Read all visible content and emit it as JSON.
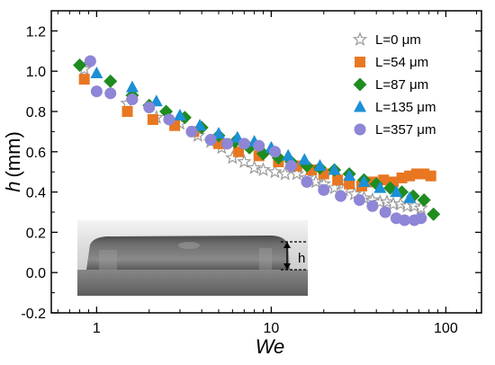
{
  "chart_data": {
    "type": "scatter",
    "title": "",
    "xlabel": "We",
    "ylabel_symbol": "h",
    "ylabel_unit": "(mm)",
    "x_scale": "log",
    "xlim": [
      0.55,
      160
    ],
    "ylim": [
      -0.2,
      1.3
    ],
    "x_ticks": [
      1,
      10,
      100
    ],
    "x_tick_labels": [
      "1",
      "10",
      "100"
    ],
    "y_ticks": [
      -0.2,
      0.0,
      0.2,
      0.4,
      0.6,
      0.8,
      1.0,
      1.2
    ],
    "y_tick_labels": [
      "-0.2",
      "0.0",
      "0.2",
      "0.4",
      "0.6",
      "0.8",
      "1.0",
      "1.2"
    ],
    "grid": false,
    "legend_position": "top-right",
    "inset": {
      "label": "h"
    },
    "series": [
      {
        "name": "L=0 μm",
        "marker": "star-open",
        "color": "#9a9a9a",
        "points": [
          [
            0.85,
            1.01
          ],
          [
            1.5,
            0.84
          ],
          [
            2.2,
            0.77
          ],
          [
            3.0,
            0.74
          ],
          [
            3.8,
            0.68
          ],
          [
            4.5,
            0.65
          ],
          [
            5.2,
            0.62
          ],
          [
            6.0,
            0.57
          ],
          [
            7.0,
            0.55
          ],
          [
            8.0,
            0.52
          ],
          [
            9.0,
            0.51
          ],
          [
            10.5,
            0.5
          ],
          [
            12.0,
            0.49
          ],
          [
            14.0,
            0.49
          ],
          [
            16.0,
            0.47
          ],
          [
            18.0,
            0.45
          ],
          [
            20.0,
            0.44
          ],
          [
            23.0,
            0.42
          ],
          [
            26.0,
            0.41
          ],
          [
            30.0,
            0.39
          ],
          [
            34.0,
            0.37
          ],
          [
            38.0,
            0.36
          ],
          [
            42.0,
            0.35
          ],
          [
            46.0,
            0.35
          ],
          [
            50.0,
            0.34
          ],
          [
            55.0,
            0.34
          ],
          [
            60.0,
            0.33
          ],
          [
            66.0,
            0.33
          ],
          [
            72.0,
            0.32
          ]
        ]
      },
      {
        "name": "L=54 μm",
        "marker": "square",
        "color": "#e87722",
        "points": [
          [
            0.85,
            0.96
          ],
          [
            1.5,
            0.8
          ],
          [
            2.1,
            0.76
          ],
          [
            2.8,
            0.73
          ],
          [
            3.6,
            0.7
          ],
          [
            5.0,
            0.64
          ],
          [
            6.5,
            0.6
          ],
          [
            8.5,
            0.58
          ],
          [
            11.0,
            0.55
          ],
          [
            14.0,
            0.53
          ],
          [
            17.0,
            0.51
          ],
          [
            20.0,
            0.49
          ],
          [
            24.0,
            0.46
          ],
          [
            28.0,
            0.44
          ],
          [
            33.0,
            0.43
          ],
          [
            38.0,
            0.45
          ],
          [
            44.0,
            0.46
          ],
          [
            50.0,
            0.45
          ],
          [
            56.0,
            0.47
          ],
          [
            62.0,
            0.48
          ],
          [
            68.0,
            0.49
          ],
          [
            75.0,
            0.49
          ],
          [
            82.0,
            0.48
          ]
        ]
      },
      {
        "name": "L=87 μm",
        "marker": "diamond",
        "color": "#1e8c1e",
        "points": [
          [
            0.8,
            1.03
          ],
          [
            1.2,
            0.95
          ],
          [
            1.6,
            0.88
          ],
          [
            2.0,
            0.83
          ],
          [
            2.5,
            0.8
          ],
          [
            3.2,
            0.77
          ],
          [
            4.0,
            0.72
          ],
          [
            5.0,
            0.68
          ],
          [
            6.2,
            0.65
          ],
          [
            7.5,
            0.62
          ],
          [
            9.0,
            0.59
          ],
          [
            11.0,
            0.57
          ],
          [
            13.0,
            0.55
          ],
          [
            16.0,
            0.53
          ],
          [
            19.0,
            0.52
          ],
          [
            23.0,
            0.51
          ],
          [
            28.0,
            0.49
          ],
          [
            34.0,
            0.46
          ],
          [
            40.0,
            0.44
          ],
          [
            48.0,
            0.42
          ],
          [
            56.0,
            0.4
          ],
          [
            65.0,
            0.38
          ],
          [
            75.0,
            0.36
          ],
          [
            85.0,
            0.29
          ]
        ]
      },
      {
        "name": "L=135 μm",
        "marker": "triangle",
        "color": "#1c8fd6",
        "points": [
          [
            1.0,
            0.99
          ],
          [
            1.6,
            0.92
          ],
          [
            2.2,
            0.85
          ],
          [
            3.0,
            0.78
          ],
          [
            3.9,
            0.73
          ],
          [
            5.0,
            0.69
          ],
          [
            6.4,
            0.67
          ],
          [
            8.0,
            0.65
          ],
          [
            10.0,
            0.62
          ],
          [
            12.5,
            0.58
          ],
          [
            15.5,
            0.56
          ],
          [
            19.0,
            0.53
          ],
          [
            23.0,
            0.51
          ],
          [
            28.0,
            0.48
          ],
          [
            34.0,
            0.45
          ],
          [
            42.0,
            0.42
          ],
          [
            52.0,
            0.4
          ],
          [
            62.0,
            0.37
          ]
        ]
      },
      {
        "name": "L=357 μm",
        "marker": "circle",
        "color": "#8e86d6",
        "points": [
          [
            0.92,
            1.05
          ],
          [
            1.0,
            0.9
          ],
          [
            1.2,
            0.89
          ],
          [
            1.6,
            0.86
          ],
          [
            2.0,
            0.82
          ],
          [
            2.6,
            0.76
          ],
          [
            3.5,
            0.7
          ],
          [
            4.5,
            0.66
          ],
          [
            5.6,
            0.64
          ],
          [
            7.0,
            0.64
          ],
          [
            8.5,
            0.63
          ],
          [
            10.5,
            0.6
          ],
          [
            13.0,
            0.53
          ],
          [
            16.0,
            0.45
          ],
          [
            20.0,
            0.41
          ],
          [
            25.0,
            0.38
          ],
          [
            32.0,
            0.36
          ],
          [
            38.0,
            0.33
          ],
          [
            45.0,
            0.3
          ],
          [
            52.0,
            0.27
          ],
          [
            58.0,
            0.26
          ],
          [
            66.0,
            0.26
          ],
          [
            72.0,
            0.27
          ]
        ]
      }
    ]
  }
}
